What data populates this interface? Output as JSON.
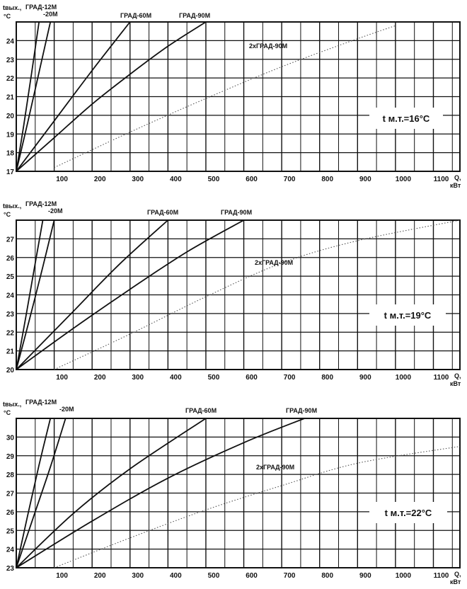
{
  "chart_data": [
    {
      "type": "line",
      "condition_label": "t м.т.=16°C",
      "ylabel_line1": "tвых.,",
      "ylabel_line2": "°C",
      "xlabel_line1": "Q,",
      "xlabel_line2": "кВт",
      "xlim": [
        0,
        1170
      ],
      "ylim": [
        17,
        25
      ],
      "x_ticks": [
        100,
        200,
        300,
        400,
        500,
        600,
        700,
        800,
        900,
        1000,
        1100
      ],
      "y_ticks": [
        17,
        18,
        19,
        20,
        21,
        22,
        23,
        24
      ],
      "series": [
        {
          "name": "ГРАД-12М",
          "style": "solid",
          "x": [
            0,
            20,
            40,
            60
          ],
          "y": [
            17,
            19.5,
            22.2,
            25
          ]
        },
        {
          "name": "-20М",
          "style": "solid",
          "x": [
            0,
            30,
            60,
            90
          ],
          "y": [
            17,
            19.6,
            22.3,
            25
          ]
        },
        {
          "name": "ГРАД-60М",
          "style": "solid",
          "x": [
            0,
            100,
            200,
            300
          ],
          "y": [
            17,
            19.7,
            22.4,
            25
          ]
        },
        {
          "name": "ГРАД-90М",
          "style": "solid",
          "x": [
            0,
            100,
            200,
            300,
            400,
            500
          ],
          "y": [
            17,
            18.8,
            20.6,
            22.2,
            23.7,
            25
          ]
        },
        {
          "name": "2хГРАД-90М",
          "style": "dotted",
          "x": [
            100,
            300,
            500,
            700,
            900,
            1000
          ],
          "y": [
            17.2,
            19.1,
            20.9,
            22.6,
            24.1,
            24.8
          ]
        }
      ]
    },
    {
      "type": "line",
      "condition_label": "t м.т.=19°C",
      "ylabel_line1": "tвых.,",
      "ylabel_line2": "°C",
      "xlabel_line1": "Q,",
      "xlabel_line2": "кВт",
      "xlim": [
        0,
        1170
      ],
      "ylim": [
        20,
        28
      ],
      "x_ticks": [
        100,
        200,
        300,
        400,
        500,
        600,
        700,
        800,
        900,
        1000,
        1100
      ],
      "y_ticks": [
        20,
        21,
        22,
        23,
        24,
        25,
        26,
        27
      ],
      "series": [
        {
          "name": "ГРАД-12М",
          "style": "solid",
          "x": [
            0,
            25,
            50,
            70
          ],
          "y": [
            20,
            22.8,
            25.7,
            28
          ]
        },
        {
          "name": "-20М",
          "style": "solid",
          "x": [
            0,
            35,
            70,
            100
          ],
          "y": [
            20,
            22.7,
            25.5,
            28
          ]
        },
        {
          "name": "ГРАД-60М",
          "style": "solid",
          "x": [
            0,
            140,
            270,
            400
          ],
          "y": [
            20,
            22.9,
            25.6,
            28
          ]
        },
        {
          "name": "ГРАД-90М",
          "style": "solid",
          "x": [
            0,
            150,
            300,
            450,
            600
          ],
          "y": [
            20,
            22.2,
            24.3,
            26.3,
            28
          ]
        },
        {
          "name": "2хГРАД-90М",
          "style": "dotted",
          "x": [
            100,
            300,
            500,
            700,
            900,
            1170
          ],
          "y": [
            20,
            21.9,
            23.9,
            25.7,
            26.9,
            28
          ]
        }
      ]
    },
    {
      "type": "line",
      "condition_label": "t м.т.=22°C",
      "ylabel_line1": "tвых.,",
      "ylabel_line2": "°C",
      "xlabel_line1": "Q,",
      "xlabel_line2": "кВт",
      "xlim": [
        0,
        1170
      ],
      "ylim": [
        23,
        31
      ],
      "x_ticks": [
        100,
        200,
        300,
        400,
        500,
        600,
        700,
        800,
        900,
        1000,
        1100
      ],
      "y_ticks": [
        23,
        24,
        25,
        26,
        27,
        28,
        29,
        30
      ],
      "series": [
        {
          "name": "ГРАД-12М",
          "style": "solid",
          "x": [
            0,
            30,
            60,
            90
          ],
          "y": [
            23,
            25.8,
            28.5,
            31
          ]
        },
        {
          "name": "-20М",
          "style": "solid",
          "x": [
            0,
            45,
            90,
            130
          ],
          "y": [
            23,
            25.7,
            28.4,
            31
          ]
        },
        {
          "name": "ГРАД-60М",
          "style": "solid",
          "x": [
            0,
            150,
            300,
            500
          ],
          "y": [
            23,
            25.9,
            28.3,
            31
          ]
        },
        {
          "name": "ГРАД-90М",
          "style": "solid",
          "x": [
            0,
            200,
            400,
            600,
            760
          ],
          "y": [
            23,
            25.5,
            27.8,
            29.7,
            31
          ]
        },
        {
          "name": "2хГРАД-90М",
          "style": "dotted",
          "x": [
            100,
            300,
            500,
            700,
            900,
            1170
          ],
          "y": [
            23,
            24.6,
            26.1,
            27.4,
            28.6,
            29.5
          ]
        }
      ]
    }
  ]
}
